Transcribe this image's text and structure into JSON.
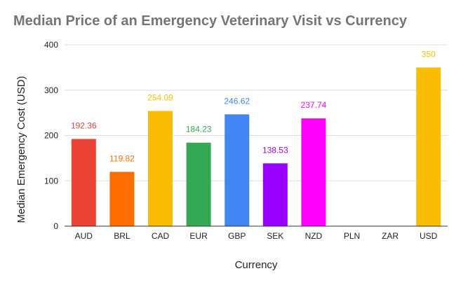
{
  "chart_data": {
    "type": "bar",
    "title": "Median Price of an Emergency Veterinary Visit vs Currency",
    "xlabel": "Currency",
    "ylabel": "Median Emergency Cost (USD)",
    "categories": [
      "AUD",
      "BRL",
      "CAD",
      "EUR",
      "GBP",
      "SEK",
      "NZD",
      "PLN",
      "ZAR",
      "USD"
    ],
    "values": [
      192.36,
      119.82,
      254.09,
      184.23,
      246.62,
      138.53,
      237.74,
      null,
      null,
      350
    ],
    "data_labels": [
      "192.36",
      "119.82",
      "254.09",
      "184.23",
      "246.62",
      "138.53",
      "237.74",
      "",
      "",
      "350"
    ],
    "colors": [
      "#ea4335",
      "#ff6d01",
      "#fbbc04",
      "#34a853",
      "#4285f4",
      "#9900ff",
      "#ff00ff",
      "#cccccc",
      "#cccccc",
      "#fbbc04"
    ],
    "label_colors": [
      "#ea4335",
      "#ff6d01",
      "#fbbc04",
      "#34a853",
      "#4285f4",
      "#9900ff",
      "#ff00ff",
      "#cccccc",
      "#cccccc",
      "#fbbc04"
    ],
    "ylim": [
      0,
      400
    ],
    "yticks": [
      0,
      100,
      200,
      300,
      400
    ],
    "grid": true,
    "legend": "none"
  }
}
